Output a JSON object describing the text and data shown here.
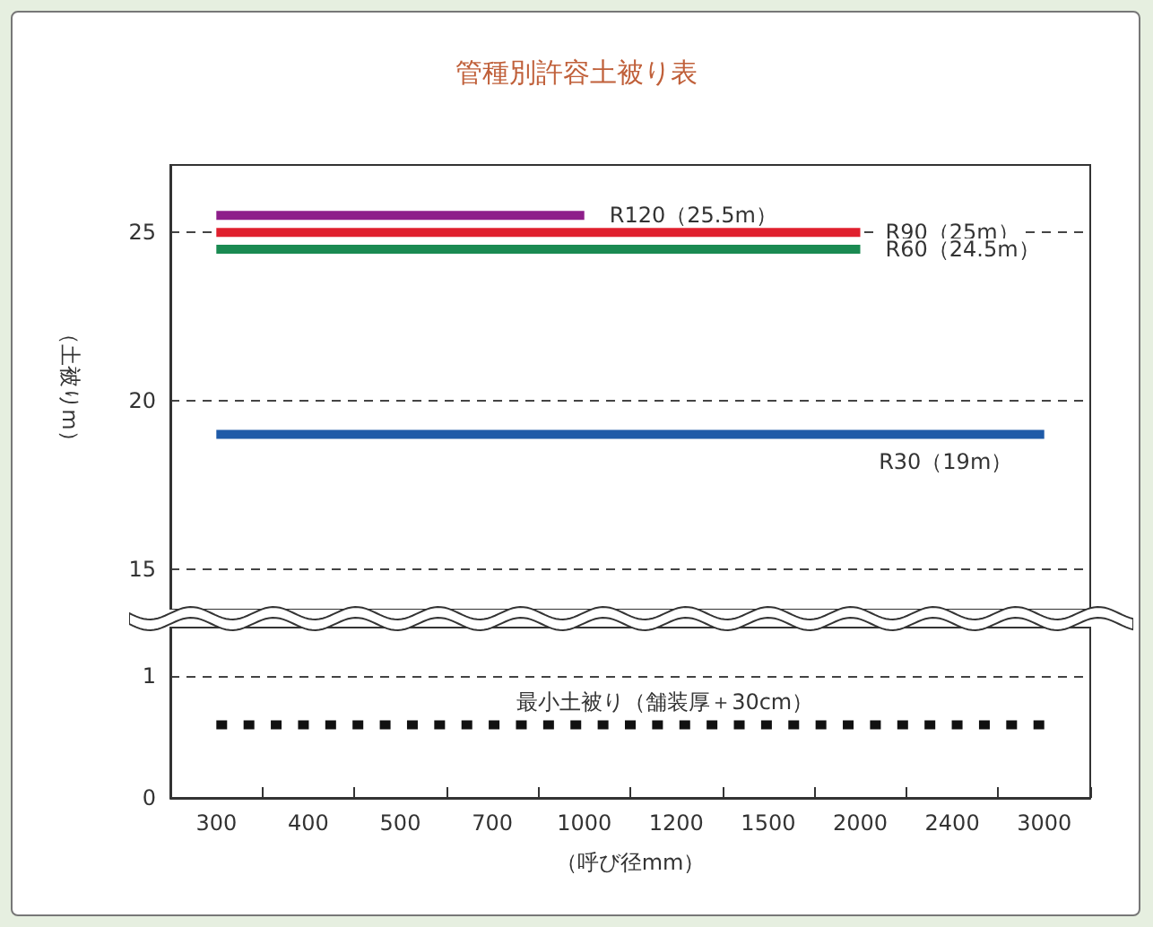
{
  "chart_data": [
    {
      "type": "line",
      "title": "管種別許容土被り表",
      "ylabel": "（土被りm）",
      "categories": [
        "300",
        "400",
        "500",
        "700",
        "1000",
        "1200",
        "1500",
        "2000",
        "2400",
        "3000"
      ],
      "ylim": [
        13.8,
        27
      ],
      "yticks": [
        15,
        20,
        25
      ],
      "grid": "y",
      "tick_labels": "y",
      "marker": "none",
      "line_style": "solid",
      "series": [
        {
          "name": "R120（25.5m）",
          "color": "#8e1e8a",
          "values": [
            25.5,
            25.5,
            25.5,
            25.5,
            25.5,
            null,
            null,
            null,
            null,
            null
          ]
        },
        {
          "name": "R90（25m）",
          "color": "#e0202e",
          "values": [
            25,
            25,
            25,
            25,
            25,
            25,
            25,
            25,
            null,
            null
          ]
        },
        {
          "name": "R60（24.5m）",
          "color": "#1a8a52",
          "values": [
            24.5,
            24.5,
            24.5,
            24.5,
            24.5,
            24.5,
            24.5,
            24.5,
            null,
            null
          ]
        },
        {
          "name": "R30（19m）",
          "color": "#1e5aa8",
          "values": [
            19,
            19,
            19,
            19,
            19,
            19,
            19,
            19,
            19,
            19
          ]
        }
      ]
    },
    {
      "type": "line",
      "xlabel": "（呼び径mm）",
      "categories": [
        "300",
        "400",
        "500",
        "700",
        "1000",
        "1200",
        "1500",
        "2000",
        "2400",
        "3000"
      ],
      "ylim": [
        0,
        1.4
      ],
      "yticks": [
        0,
        1
      ],
      "grid": "y",
      "marker": "none",
      "line_style": "dotted",
      "series": [
        {
          "name": "最小土被り（舗装厚＋30cm）",
          "color": "#111111",
          "values": [
            0.6,
            0.6,
            0.6,
            0.6,
            0.6,
            0.6,
            0.6,
            0.6,
            0.6,
            0.6
          ]
        }
      ]
    }
  ]
}
